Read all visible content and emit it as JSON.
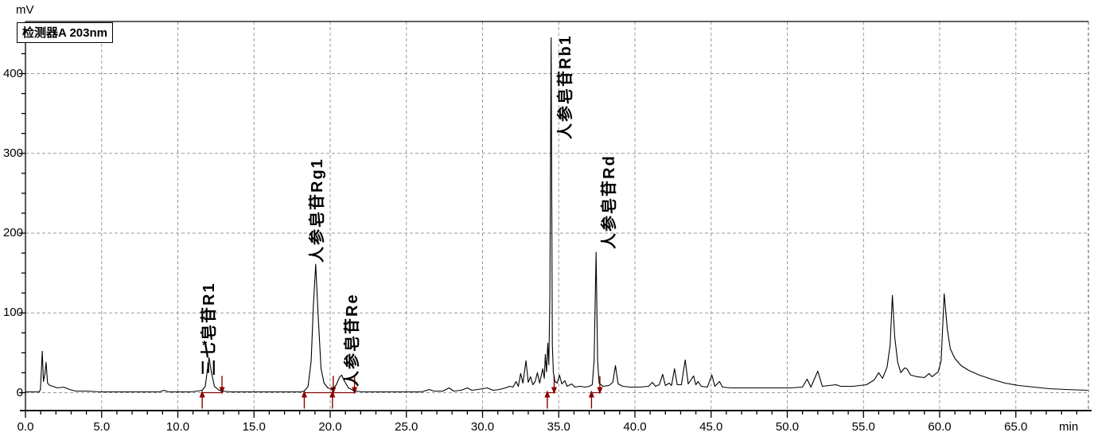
{
  "title_box": {
    "text": "检测器A 203nm"
  },
  "y_axis": {
    "unit": "mV",
    "tick_labels": [
      "0",
      "100",
      "200",
      "300",
      "400"
    ],
    "tick_values": [
      0,
      100,
      200,
      300,
      400
    ],
    "minor_step": 25
  },
  "x_axis": {
    "unit": "min",
    "tick_labels": [
      "0.0",
      "5.0",
      "10.0",
      "15.0",
      "20.0",
      "25.0",
      "30.0",
      "35.0",
      "40.0",
      "45.0",
      "50.0",
      "55.0",
      "60.0",
      "65.0"
    ],
    "tick_values": [
      0,
      5,
      10,
      15,
      20,
      25,
      30,
      35,
      40,
      45,
      50,
      55,
      60,
      65
    ],
    "minor_step": 1
  },
  "chart_data": {
    "type": "line",
    "title": "检测器A 203nm",
    "xlabel": "min",
    "ylabel": "mV",
    "xlim": [
      0,
      69.8
    ],
    "ylim": [
      -23,
      470
    ],
    "grid": "dashed horizontal at 0/100/200/300/400 mV and vertical every 5 min",
    "series": [
      {
        "name": "detector-A-203nm-trace",
        "color": "#000000",
        "points": [
          [
            0,
            1
          ],
          [
            0.6,
            1
          ],
          [
            0.9,
            1
          ],
          [
            0.98,
            4
          ],
          [
            1.05,
            30
          ],
          [
            1.1,
            52
          ],
          [
            1.18,
            14
          ],
          [
            1.28,
            24
          ],
          [
            1.35,
            38
          ],
          [
            1.45,
            12
          ],
          [
            1.6,
            9
          ],
          [
            1.8,
            8
          ],
          [
            2.1,
            6
          ],
          [
            2.5,
            7
          ],
          [
            2.9,
            4
          ],
          [
            3.3,
            2
          ],
          [
            4,
            2
          ],
          [
            5,
            1
          ],
          [
            6,
            1
          ],
          [
            7,
            1
          ],
          [
            8,
            1
          ],
          [
            8.8,
            1
          ],
          [
            9.1,
            3
          ],
          [
            9.4,
            1
          ],
          [
            10,
            1
          ],
          [
            10.8,
            1
          ],
          [
            11.3,
            2
          ],
          [
            11.6,
            3
          ],
          [
            11.8,
            8
          ],
          [
            11.95,
            30
          ],
          [
            12.05,
            44
          ],
          [
            12.2,
            26
          ],
          [
            12.4,
            8
          ],
          [
            12.7,
            3
          ],
          [
            12.9,
            2
          ],
          [
            13.5,
            1
          ],
          [
            14.5,
            1
          ],
          [
            15.5,
            1
          ],
          [
            16.5,
            1
          ],
          [
            17.5,
            1
          ],
          [
            18.1,
            1
          ],
          [
            18.3,
            2
          ],
          [
            18.55,
            8
          ],
          [
            18.75,
            40
          ],
          [
            18.9,
            110
          ],
          [
            19.05,
            161
          ],
          [
            19.2,
            100
          ],
          [
            19.4,
            30
          ],
          [
            19.6,
            12
          ],
          [
            19.85,
            6
          ],
          [
            20.15,
            4
          ],
          [
            20.4,
            10
          ],
          [
            20.6,
            19
          ],
          [
            20.75,
            22
          ],
          [
            20.95,
            14
          ],
          [
            21.2,
            6
          ],
          [
            21.6,
            2
          ],
          [
            22.2,
            1
          ],
          [
            23,
            1
          ],
          [
            24,
            1
          ],
          [
            25,
            1
          ],
          [
            26,
            1
          ],
          [
            26.5,
            4
          ],
          [
            26.8,
            2
          ],
          [
            27.4,
            2
          ],
          [
            27.8,
            6
          ],
          [
            28.1,
            2
          ],
          [
            28.6,
            3
          ],
          [
            29,
            6
          ],
          [
            29.3,
            3
          ],
          [
            29.7,
            4
          ],
          [
            30,
            5
          ],
          [
            30.3,
            6
          ],
          [
            30.7,
            3
          ],
          [
            31.1,
            4
          ],
          [
            31.5,
            6
          ],
          [
            31.8,
            8
          ],
          [
            32,
            7
          ],
          [
            32.2,
            14
          ],
          [
            32.35,
            8
          ],
          [
            32.5,
            24
          ],
          [
            32.65,
            12
          ],
          [
            32.85,
            40
          ],
          [
            33,
            13
          ],
          [
            33.15,
            20
          ],
          [
            33.3,
            10
          ],
          [
            33.45,
            14
          ],
          [
            33.6,
            25
          ],
          [
            33.75,
            12
          ],
          [
            33.95,
            30
          ],
          [
            34.05,
            18
          ],
          [
            34.12,
            48
          ],
          [
            34.2,
            26
          ],
          [
            34.28,
            62
          ],
          [
            34.35,
            35
          ],
          [
            34.42,
            120
          ],
          [
            34.5,
            445
          ],
          [
            34.58,
            60
          ],
          [
            34.65,
            25
          ],
          [
            34.75,
            14
          ],
          [
            34.9,
            12
          ],
          [
            35.05,
            22
          ],
          [
            35.2,
            11
          ],
          [
            35.4,
            15
          ],
          [
            35.55,
            8
          ],
          [
            35.85,
            11
          ],
          [
            36.05,
            7
          ],
          [
            36.4,
            8
          ],
          [
            36.75,
            7
          ],
          [
            37,
            8
          ],
          [
            37.2,
            10
          ],
          [
            37.32,
            40
          ],
          [
            37.45,
            176
          ],
          [
            37.55,
            40
          ],
          [
            37.65,
            12
          ],
          [
            37.9,
            8
          ],
          [
            38.3,
            9
          ],
          [
            38.55,
            13
          ],
          [
            38.72,
            34
          ],
          [
            38.9,
            11
          ],
          [
            39.2,
            8
          ],
          [
            39.7,
            7
          ],
          [
            40.3,
            7
          ],
          [
            40.9,
            8
          ],
          [
            41.15,
            13
          ],
          [
            41.35,
            8
          ],
          [
            41.6,
            10
          ],
          [
            41.82,
            23
          ],
          [
            42,
            9
          ],
          [
            42.25,
            12
          ],
          [
            42.4,
            9
          ],
          [
            42.6,
            30
          ],
          [
            42.78,
            10
          ],
          [
            43.05,
            10
          ],
          [
            43.3,
            41
          ],
          [
            43.5,
            11
          ],
          [
            43.85,
            21
          ],
          [
            44,
            10
          ],
          [
            44.15,
            14
          ],
          [
            44.35,
            8
          ],
          [
            44.75,
            7
          ],
          [
            45.05,
            22
          ],
          [
            45.25,
            8
          ],
          [
            45.55,
            14
          ],
          [
            45.75,
            7
          ],
          [
            46.3,
            6
          ],
          [
            47.2,
            6
          ],
          [
            48.2,
            6
          ],
          [
            49.2,
            6
          ],
          [
            50.2,
            6
          ],
          [
            51,
            7
          ],
          [
            51.3,
            17
          ],
          [
            51.55,
            7
          ],
          [
            52,
            27
          ],
          [
            52.3,
            8
          ],
          [
            53.2,
            10
          ],
          [
            53.5,
            8
          ],
          [
            54.3,
            8
          ],
          [
            55.2,
            10
          ],
          [
            55.7,
            16
          ],
          [
            56,
            25
          ],
          [
            56.25,
            18
          ],
          [
            56.55,
            32
          ],
          [
            56.75,
            60
          ],
          [
            56.9,
            122
          ],
          [
            57.05,
            70
          ],
          [
            57.25,
            38
          ],
          [
            57.45,
            25
          ],
          [
            57.7,
            31
          ],
          [
            57.85,
            30
          ],
          [
            58.1,
            22
          ],
          [
            58.5,
            20
          ],
          [
            59,
            19
          ],
          [
            59.3,
            24
          ],
          [
            59.5,
            20
          ],
          [
            59.9,
            26
          ],
          [
            60.1,
            40
          ],
          [
            60.3,
            124
          ],
          [
            60.5,
            80
          ],
          [
            60.7,
            55
          ],
          [
            61,
            43
          ],
          [
            61.4,
            34
          ],
          [
            61.9,
            28
          ],
          [
            62.6,
            22
          ],
          [
            63.4,
            17
          ],
          [
            64.3,
            12
          ],
          [
            65.2,
            9
          ],
          [
            66.2,
            7
          ],
          [
            67.2,
            5
          ],
          [
            68.3,
            4
          ],
          [
            69.7,
            3
          ]
        ]
      }
    ],
    "peaks": [
      {
        "label": "三七皂苷R1",
        "rt": 12.05,
        "height_mv": 44,
        "label_t": 12.06,
        "label_mv": 21,
        "marker": "*",
        "marker_t": 11.8,
        "marker_mv": 63
      },
      {
        "label": "人参皂苷Rg1",
        "rt": 19.05,
        "height_mv": 161,
        "label_t": 19.16,
        "label_mv": 163
      },
      {
        "label": "人参皂苷Re",
        "rt": 20.75,
        "height_mv": 22,
        "label_t": 21.46,
        "label_mv": 7
      },
      {
        "label": "人参皂苷Rb1",
        "rt": 34.5,
        "height_mv": 445,
        "label_t": 35.46,
        "label_mv": 318
      },
      {
        "label": "人参皂苷Rd",
        "rt": 37.45,
        "height_mv": 176,
        "label_t": 38.33,
        "label_mv": 180
      }
    ],
    "integration_marks": {
      "color": "#8b0000",
      "start_arrows_t": [
        11.6,
        18.3,
        20.15,
        34.25,
        37.15
      ],
      "end_arrows_t": [
        12.9,
        20.2,
        21.6,
        34.7,
        37.7
      ],
      "baseline_segments": [
        [
          11.6,
          12.9
        ],
        [
          18.3,
          21.6
        ],
        [
          34.25,
          34.75
        ],
        [
          37.2,
          37.7
        ]
      ]
    }
  }
}
